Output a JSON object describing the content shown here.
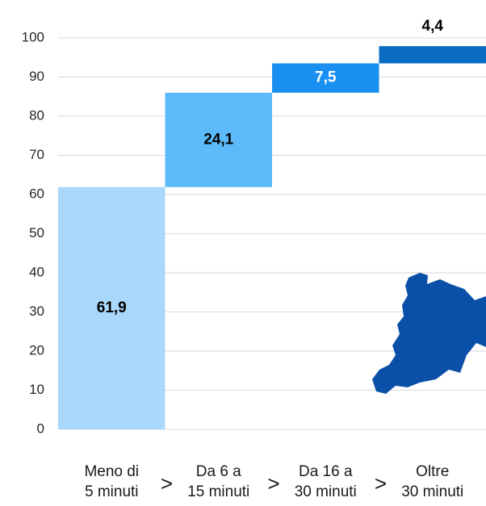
{
  "chart_data": {
    "type": "waterfall",
    "categories": [
      [
        "Meno di",
        "5 minuti"
      ],
      [
        "Da 6 a",
        "15 minuti"
      ],
      [
        "Da 16 a",
        "30 minuti"
      ],
      [
        "Oltre",
        "30 minuti"
      ]
    ],
    "separator": ">",
    "values": [
      61.9,
      24.1,
      7.5,
      4.4
    ],
    "value_labels": [
      "61,9",
      "24,1",
      "7,5",
      "4,4"
    ],
    "colors": [
      "#a9d8fc",
      "#5cb9fa",
      "#1a8ff2",
      "#0a6bc2"
    ],
    "label_colors": [
      "#000000",
      "#000000",
      "#ffffff",
      "#000000"
    ],
    "ylim": [
      0,
      100
    ],
    "yticks": [
      0,
      10,
      20,
      30,
      40,
      50,
      60,
      70,
      80,
      90,
      100
    ],
    "grid": true
  }
}
